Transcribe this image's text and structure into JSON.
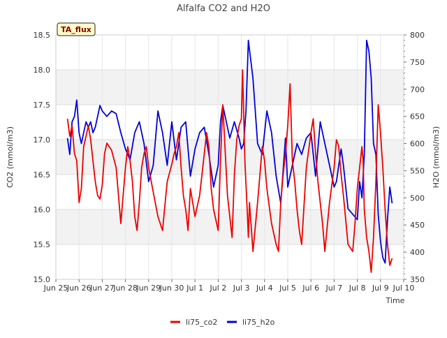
{
  "chart_data": {
    "type": "line",
    "title": "Alfalfa CO2 and H2O",
    "xlabel": "Time",
    "ylabel": "CO2 (mmol/m3)",
    "ylabel_right": "H2O (mmol/m3)",
    "badge": "TA_flux",
    "x_ticks": [
      {
        "day": 0,
        "label": "Jun 25"
      },
      {
        "day": 1,
        "label": "Jun 26"
      },
      {
        "day": 2,
        "label": "Jun 27"
      },
      {
        "day": 3,
        "label": "Jun 28"
      },
      {
        "day": 4,
        "label": "Jun 29"
      },
      {
        "day": 5,
        "label": "Jun 30"
      },
      {
        "day": 6,
        "label": "Jul 1"
      },
      {
        "day": 7,
        "label": "Jul 2"
      },
      {
        "day": 8,
        "label": "Jul 3"
      },
      {
        "day": 9,
        "label": "Jul 4"
      },
      {
        "day": 10,
        "label": "Jul 5"
      },
      {
        "day": 11,
        "label": "Jul 6"
      },
      {
        "day": 12,
        "label": "Jul 7"
      },
      {
        "day": 13,
        "label": "Jul 8"
      },
      {
        "day": 14,
        "label": "Jul 9"
      },
      {
        "day": 15,
        "label": "Jul 10"
      }
    ],
    "xlim": [
      0,
      15
    ],
    "ylim": [
      15.0,
      18.5
    ],
    "ylim_right": [
      350,
      800
    ],
    "y_ticks": [
      "15.0",
      "15.5",
      "16.0",
      "16.5",
      "17.0",
      "17.5",
      "18.0",
      "18.5"
    ],
    "y_ticks_right": [
      "350",
      "400",
      "450",
      "500",
      "550",
      "600",
      "650",
      "700",
      "750",
      "800"
    ],
    "series": [
      {
        "name": "li75_co2",
        "color": "#ee0000",
        "axis": "left",
        "x": [
          0.5,
          0.6,
          0.7,
          0.8,
          0.9,
          1.0,
          1.1,
          1.2,
          1.3,
          1.4,
          1.5,
          1.6,
          1.7,
          1.8,
          1.9,
          2.0,
          2.1,
          2.2,
          2.4,
          2.6,
          2.8,
          3.0,
          3.1,
          3.2,
          3.3,
          3.4,
          3.5,
          3.6,
          3.7,
          3.8,
          3.9,
          4.0,
          4.2,
          4.4,
          4.6,
          4.8,
          5.0,
          5.1,
          5.2,
          5.3,
          5.4,
          5.5,
          5.6,
          5.7,
          5.8,
          6.0,
          6.2,
          6.3,
          6.4,
          6.5,
          6.6,
          6.7,
          6.8,
          7.0,
          7.1,
          7.2,
          7.4,
          7.5,
          7.6,
          7.7,
          7.8,
          7.9,
          8.0,
          8.05,
          8.15,
          8.25,
          8.3,
          8.35,
          8.5,
          8.7,
          8.9,
          9.0,
          9.1,
          9.3,
          9.5,
          9.6,
          9.7,
          9.8,
          9.9,
          10.0,
          10.1,
          10.2,
          10.3,
          10.4,
          10.5,
          10.6,
          10.8,
          11.0,
          11.1,
          11.2,
          11.3,
          11.4,
          11.5,
          11.6,
          11.8,
          12.0,
          12.1,
          12.2,
          12.3,
          12.4,
          12.6,
          12.8,
          12.9,
          13.0,
          13.1,
          13.2,
          13.25,
          13.3,
          13.4,
          13.5,
          13.6,
          13.7,
          13.8,
          13.9,
          14.0,
          14.1,
          14.2,
          14.3,
          14.4,
          14.5
        ],
        "values": [
          17.3,
          17.05,
          17.2,
          16.8,
          16.7,
          16.1,
          16.3,
          16.9,
          17.05,
          17.2,
          17.0,
          16.7,
          16.4,
          16.2,
          16.15,
          16.35,
          16.8,
          16.95,
          16.85,
          16.6,
          15.8,
          16.6,
          16.9,
          16.7,
          16.4,
          15.9,
          15.7,
          16.1,
          16.6,
          16.8,
          16.9,
          16.6,
          16.25,
          15.9,
          15.7,
          16.4,
          16.65,
          16.8,
          16.9,
          17.1,
          16.6,
          16.2,
          16.0,
          15.7,
          16.3,
          15.9,
          16.2,
          16.5,
          16.8,
          17.1,
          16.9,
          16.3,
          16.0,
          15.7,
          16.7,
          17.5,
          16.2,
          15.9,
          15.6,
          16.5,
          17.0,
          17.2,
          17.3,
          18.0,
          16.7,
          16.0,
          15.6,
          16.1,
          15.4,
          16.1,
          16.9,
          16.7,
          16.3,
          15.8,
          15.5,
          15.4,
          16.1,
          16.5,
          16.8,
          17.2,
          17.8,
          16.7,
          16.4,
          16.0,
          15.7,
          15.5,
          16.6,
          17.1,
          17.3,
          16.8,
          16.4,
          16.1,
          15.8,
          15.4,
          16.1,
          16.6,
          17.0,
          16.9,
          16.5,
          16.2,
          15.5,
          15.4,
          15.8,
          16.3,
          16.6,
          16.9,
          16.7,
          16.0,
          15.6,
          15.4,
          15.1,
          15.6,
          16.4,
          17.5,
          17.1,
          16.6,
          16.0,
          15.5,
          15.2,
          15.3
        ]
      },
      {
        "name": "li75_h2o",
        "color": "#0000dd",
        "axis": "right",
        "x": [
          0.5,
          0.6,
          0.7,
          0.8,
          0.9,
          1.0,
          1.1,
          1.2,
          1.3,
          1.4,
          1.5,
          1.6,
          1.7,
          1.8,
          1.9,
          2.0,
          2.2,
          2.4,
          2.6,
          2.8,
          3.0,
          3.2,
          3.4,
          3.6,
          3.8,
          4.0,
          4.2,
          4.4,
          4.6,
          4.8,
          5.0,
          5.2,
          5.4,
          5.6,
          5.8,
          6.0,
          6.2,
          6.4,
          6.6,
          6.8,
          7.0,
          7.1,
          7.2,
          7.3,
          7.5,
          7.7,
          7.9,
          8.0,
          8.1,
          8.2,
          8.3,
          8.5,
          8.7,
          8.9,
          9.1,
          9.3,
          9.5,
          9.7,
          9.9,
          10.0,
          10.2,
          10.4,
          10.6,
          10.8,
          11.0,
          11.2,
          11.4,
          11.6,
          11.8,
          12.0,
          12.1,
          12.2,
          12.3,
          12.4,
          12.6,
          12.8,
          13.0,
          13.1,
          13.2,
          13.3,
          13.4,
          13.5,
          13.6,
          13.7,
          13.8,
          13.9,
          14.0,
          14.1,
          14.2,
          14.3,
          14.4,
          14.5
        ],
        "values": [
          610,
          580,
          640,
          650,
          680,
          620,
          600,
          620,
          640,
          630,
          640,
          620,
          630,
          650,
          670,
          660,
          650,
          660,
          655,
          620,
          590,
          570,
          620,
          640,
          600,
          530,
          560,
          660,
          620,
          560,
          640,
          570,
          630,
          640,
          540,
          590,
          620,
          630,
          580,
          520,
          560,
          640,
          670,
          650,
          610,
          640,
          610,
          590,
          600,
          660,
          790,
          720,
          600,
          580,
          660,
          620,
          540,
          490,
          610,
          520,
          560,
          600,
          580,
          610,
          620,
          540,
          640,
          600,
          560,
          520,
          530,
          560,
          590,
          560,
          480,
          470,
          460,
          530,
          500,
          580,
          790,
          770,
          720,
          600,
          580,
          470,
          420,
          390,
          380,
          460,
          520,
          490
        ]
      }
    ]
  }
}
